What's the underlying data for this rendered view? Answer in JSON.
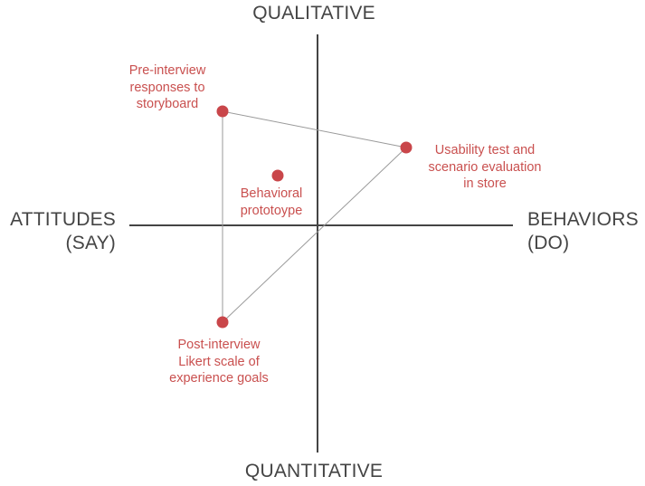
{
  "axes": {
    "top": "QUALITATIVE",
    "bottom": "QUANTITATIVE",
    "left": [
      "ATTITUDES",
      "(SAY)"
    ],
    "right": [
      "BEHAVIORS",
      "(DO)"
    ]
  },
  "colors": {
    "axis": "#444444",
    "point": "#c9464a",
    "connector": "#9a9a9a",
    "label": "#c9504f"
  },
  "points": [
    {
      "id": "pre-interview",
      "lines": [
        "Pre-interview",
        "responses to",
        "storyboard"
      ]
    },
    {
      "id": "usability-test",
      "lines": [
        "Usability test and",
        "scenario evaluation",
        "in store"
      ]
    },
    {
      "id": "behavioral-prototype",
      "lines": [
        "Behavioral",
        "prototoype"
      ]
    },
    {
      "id": "post-interview",
      "lines": [
        "Post-interview",
        "Likert scale of",
        "experience goals"
      ]
    }
  ]
}
